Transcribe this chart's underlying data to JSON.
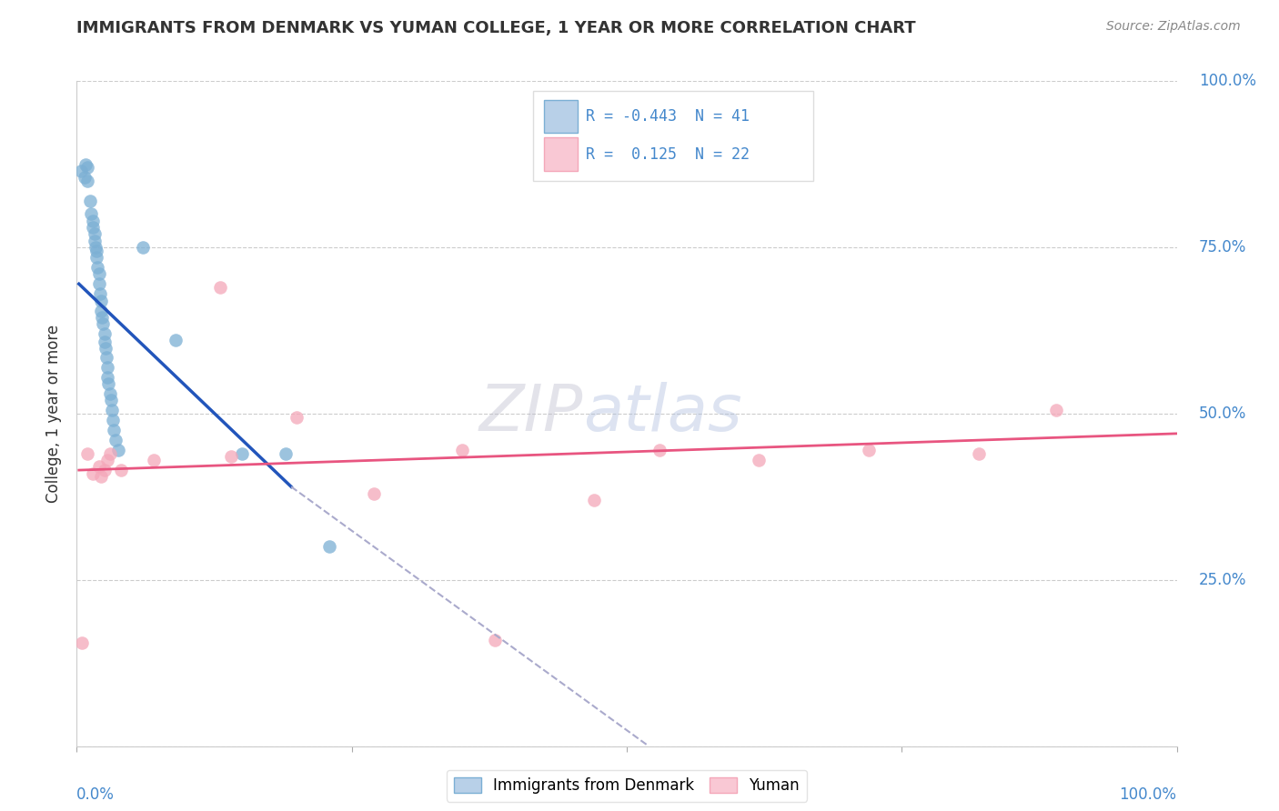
{
  "title": "IMMIGRANTS FROM DENMARK VS YUMAN COLLEGE, 1 YEAR OR MORE CORRELATION CHART",
  "source_text": "Source: ZipAtlas.com",
  "ylabel": "College, 1 year or more",
  "xlim": [
    0.0,
    1.0
  ],
  "ylim": [
    0.0,
    1.0
  ],
  "yticks": [
    0.0,
    0.25,
    0.5,
    0.75,
    1.0
  ],
  "ytick_labels_right": [
    "",
    "25.0%",
    "50.0%",
    "75.0%",
    "100.0%"
  ],
  "legend_blue_r": "-0.443",
  "legend_blue_n": "41",
  "legend_pink_r": "0.125",
  "legend_pink_n": "22",
  "legend_label_blue": "Immigrants from Denmark",
  "legend_label_pink": "Yuman",
  "blue_scatter_color": "#7bafd4",
  "pink_scatter_color": "#f4a7b9",
  "blue_line_color": "#2255bb",
  "pink_line_color": "#e85580",
  "dashed_line_color": "#aaaacc",
  "watermark_zip": "ZIP",
  "watermark_atlas": "atlas",
  "blue_scatter_x": [
    0.004,
    0.007,
    0.008,
    0.01,
    0.01,
    0.012,
    0.013,
    0.015,
    0.015,
    0.016,
    0.016,
    0.017,
    0.018,
    0.018,
    0.019,
    0.02,
    0.02,
    0.021,
    0.022,
    0.022,
    0.023,
    0.024,
    0.025,
    0.025,
    0.026,
    0.027,
    0.028,
    0.028,
    0.029,
    0.03,
    0.031,
    0.032,
    0.033,
    0.034,
    0.035,
    0.038,
    0.06,
    0.09,
    0.15,
    0.19,
    0.23
  ],
  "blue_scatter_y": [
    0.865,
    0.855,
    0.875,
    0.87,
    0.85,
    0.82,
    0.8,
    0.79,
    0.78,
    0.77,
    0.76,
    0.75,
    0.745,
    0.735,
    0.72,
    0.71,
    0.695,
    0.68,
    0.67,
    0.655,
    0.645,
    0.635,
    0.62,
    0.608,
    0.598,
    0.585,
    0.57,
    0.555,
    0.545,
    0.53,
    0.52,
    0.505,
    0.49,
    0.475,
    0.46,
    0.445,
    0.75,
    0.61,
    0.44,
    0.44,
    0.3
  ],
  "pink_scatter_x": [
    0.005,
    0.01,
    0.015,
    0.02,
    0.022,
    0.025,
    0.028,
    0.03,
    0.04,
    0.07,
    0.13,
    0.2,
    0.27,
    0.35,
    0.47,
    0.53,
    0.62,
    0.72,
    0.82,
    0.89,
    0.14,
    0.38
  ],
  "pink_scatter_y": [
    0.155,
    0.44,
    0.41,
    0.42,
    0.405,
    0.415,
    0.43,
    0.44,
    0.415,
    0.43,
    0.69,
    0.495,
    0.38,
    0.445,
    0.37,
    0.445,
    0.43,
    0.445,
    0.44,
    0.505,
    0.435,
    0.16
  ],
  "blue_line_x0": 0.002,
  "blue_line_x1": 0.195,
  "blue_line_y0": 0.695,
  "blue_line_y1": 0.39,
  "pink_line_x0": 0.002,
  "pink_line_x1": 1.0,
  "pink_line_y0": 0.415,
  "pink_line_y1": 0.47,
  "dashed_line_x0": 0.195,
  "dashed_line_x1": 0.52,
  "dashed_line_y0": 0.39,
  "dashed_line_y1": 0.0,
  "background_color": "#ffffff",
  "grid_color": "#cccccc",
  "tick_label_color": "#4488cc",
  "title_color": "#333333",
  "source_color": "#888888"
}
